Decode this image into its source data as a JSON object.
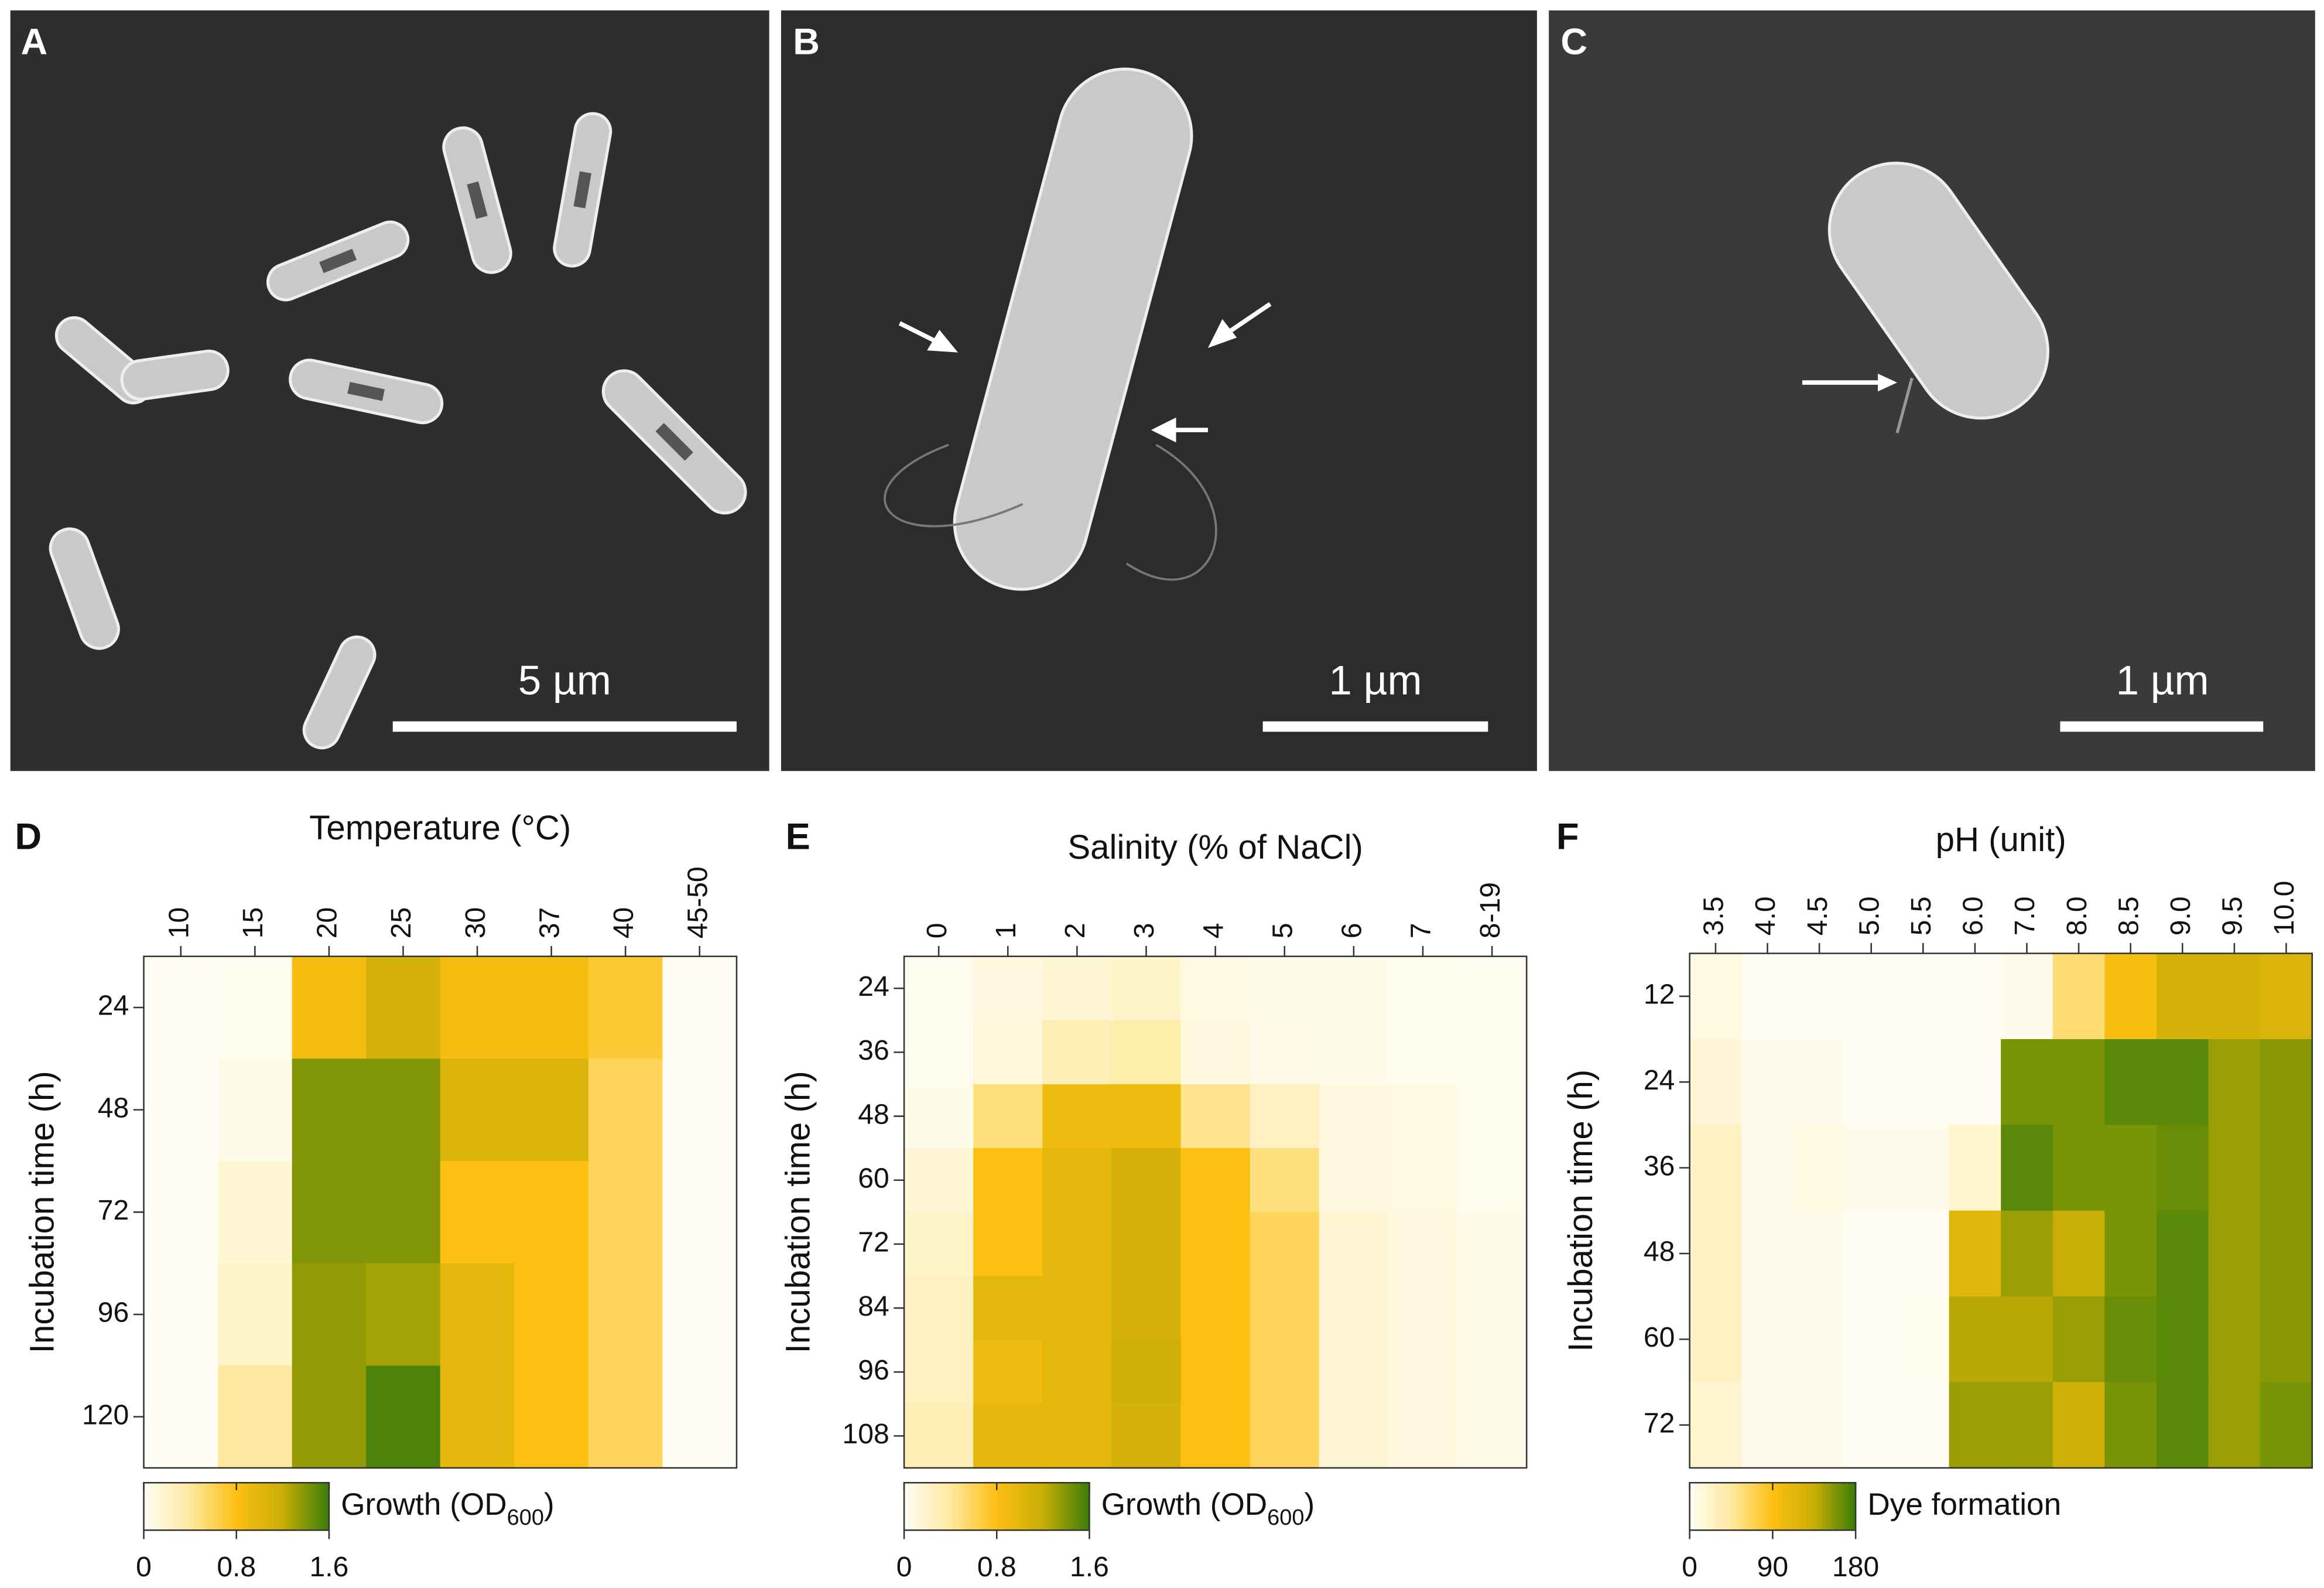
{
  "images": [
    {
      "letter": "A",
      "scale_bar": "5 µm"
    },
    {
      "letter": "B",
      "scale_bar": "1 µm"
    },
    {
      "letter": "C",
      "scale_bar": "1 µm"
    }
  ],
  "chart_data": [
    {
      "type": "heatmap",
      "letter": "D",
      "xlabel": "Temperature (°C)",
      "ylabel": "Incubation time (h)",
      "x": [
        "10",
        "15",
        "20",
        "25",
        "30",
        "37",
        "40",
        "45-50"
      ],
      "y": [
        "24",
        "48",
        "72",
        "96",
        "120"
      ],
      "values": [
        [
          0,
          0.02,
          0.85,
          1.1,
          0.85,
          0.85,
          0.7,
          0
        ],
        [
          0,
          0.05,
          1.4,
          1.4,
          1.05,
          1.05,
          0.6,
          0
        ],
        [
          0,
          0.15,
          1.4,
          1.4,
          0.8,
          0.8,
          0.6,
          0
        ],
        [
          0,
          0.2,
          1.35,
          1.3,
          1.0,
          0.8,
          0.6,
          0
        ],
        [
          0,
          0.4,
          1.35,
          1.55,
          1.0,
          0.8,
          0.6,
          0
        ]
      ],
      "colorbar": {
        "label": [
          "Growth (OD",
          "600",
          ")"
        ],
        "lim": [
          0,
          1.6
        ],
        "ticks": [
          0,
          0.8,
          1.6
        ],
        "colors": [
          "#fffdf3",
          "#fee9a0",
          "#fdbf12",
          "#c8ae06",
          "#3a7d08"
        ]
      }
    },
    {
      "type": "heatmap",
      "letter": "E",
      "xlabel": "Salinity (% of NaCl)",
      "ylabel": "Incubation time (h)",
      "x": [
        "0",
        "1",
        "2",
        "3",
        "4",
        "5",
        "6",
        "7",
        "8-19"
      ],
      "y": [
        "24",
        "36",
        "48",
        "60",
        "72",
        "84",
        "96",
        "108"
      ],
      "values": [
        [
          0.02,
          0.1,
          0.15,
          0.2,
          0.08,
          0.05,
          0.05,
          0.03,
          0.02
        ],
        [
          0.03,
          0.12,
          0.3,
          0.35,
          0.1,
          0.06,
          0.05,
          0.03,
          0.02
        ],
        [
          0.05,
          0.5,
          0.9,
          0.9,
          0.45,
          0.25,
          0.1,
          0.08,
          0.03
        ],
        [
          0.15,
          0.8,
          1.0,
          1.1,
          0.8,
          0.5,
          0.1,
          0.08,
          0.03
        ],
        [
          0.2,
          0.8,
          1.0,
          1.1,
          0.8,
          0.6,
          0.15,
          0.1,
          0.05
        ],
        [
          0.25,
          1.0,
          1.0,
          1.1,
          0.8,
          0.6,
          0.15,
          0.1,
          0.05
        ],
        [
          0.25,
          0.9,
          1.0,
          1.15,
          0.8,
          0.6,
          0.15,
          0.1,
          0.05
        ],
        [
          0.3,
          1.0,
          1.0,
          1.1,
          0.8,
          0.6,
          0.15,
          0.1,
          0.05
        ]
      ],
      "colorbar": {
        "label": [
          "Growth (OD",
          "600",
          ")"
        ],
        "lim": [
          0,
          1.6
        ],
        "ticks": [
          0,
          0.8,
          1.6
        ],
        "colors": [
          "#fffdf3",
          "#fee9a0",
          "#fdbf12",
          "#c8ae06",
          "#3a7d08"
        ]
      }
    },
    {
      "type": "heatmap",
      "letter": "F",
      "xlabel": "pH (unit)",
      "ylabel": "Incubation time (h)",
      "x": [
        "3.5",
        "4.0",
        "4.5",
        "5.0",
        "5.5",
        "6.0",
        "7.0",
        "8.0",
        "8.5",
        "9.0",
        "9.5",
        "10.0"
      ],
      "y": [
        "12",
        "24",
        "36",
        "48",
        "60",
        "72"
      ],
      "values": [
        [
          10,
          0,
          0,
          0,
          0,
          0,
          5,
          60,
          95,
          125,
          125,
          120
        ],
        [
          15,
          5,
          5,
          0,
          0,
          0,
          160,
          160,
          170,
          170,
          150,
          155
        ],
        [
          25,
          5,
          10,
          5,
          5,
          20,
          170,
          160,
          160,
          165,
          150,
          155
        ],
        [
          25,
          5,
          5,
          0,
          0,
          115,
          150,
          135,
          160,
          170,
          150,
          155
        ],
        [
          25,
          5,
          5,
          0,
          3,
          140,
          140,
          150,
          165,
          170,
          150,
          155
        ],
        [
          20,
          5,
          5,
          0,
          0,
          150,
          150,
          130,
          160,
          170,
          150,
          160
        ]
      ],
      "colorbar": {
        "label": [
          "Dye formation"
        ],
        "lim": [
          0,
          180
        ],
        "ticks": [
          0,
          90,
          180
        ],
        "colors": [
          "#fffdf3",
          "#fee9a0",
          "#fdbf12",
          "#c8ae06",
          "#3a7d08"
        ]
      }
    }
  ]
}
